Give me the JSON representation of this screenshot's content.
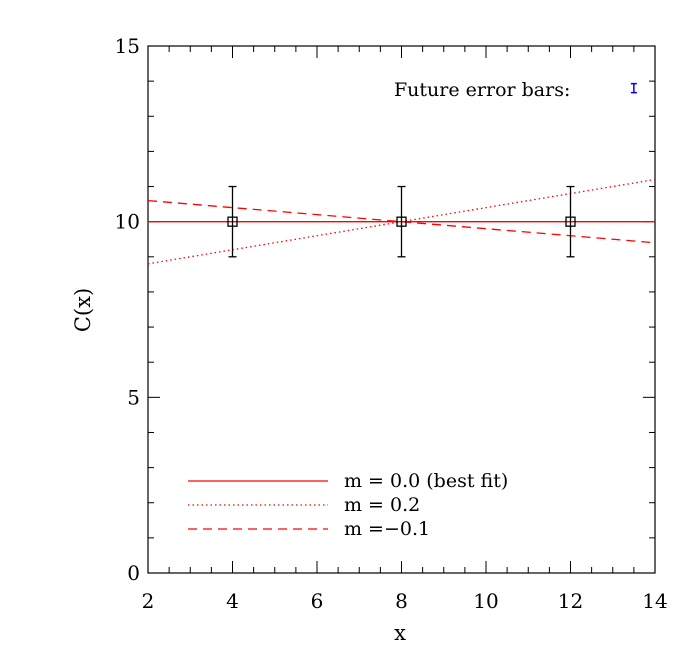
{
  "chart_data": {
    "type": "scatter",
    "title": "",
    "xlabel": "x",
    "ylabel": "C(x)",
    "xlim": [
      2,
      14
    ],
    "ylim": [
      0,
      15
    ],
    "xticks": [
      2,
      4,
      6,
      8,
      10,
      12,
      14
    ],
    "yticks": [
      0,
      5,
      10,
      15
    ],
    "grid": false,
    "points": {
      "x": [
        4,
        8,
        12
      ],
      "y": [
        10,
        10,
        10
      ],
      "yerr": [
        1,
        1,
        1
      ],
      "marker": "square",
      "color": "#000000"
    },
    "series": [
      {
        "name": "m = 0.0 (best fit)",
        "slope": 0.0,
        "pivot_x": 8,
        "pivot_y": 10,
        "style": "solid",
        "color": "#ff0000"
      },
      {
        "name": "m = 0.2",
        "slope": 0.2,
        "pivot_x": 8,
        "pivot_y": 10,
        "style": "dotted",
        "color": "#ff0000"
      },
      {
        "name": "m =−0.1",
        "slope": -0.1,
        "pivot_x": 8,
        "pivot_y": 10,
        "style": "dashed",
        "color": "#ff0000"
      }
    ],
    "legend_position": "bottom-left",
    "annotation": {
      "text": "Future error bars:",
      "x": 13.5,
      "y": 13.8,
      "yerr": 0.1,
      "color": "#0000ff"
    }
  }
}
